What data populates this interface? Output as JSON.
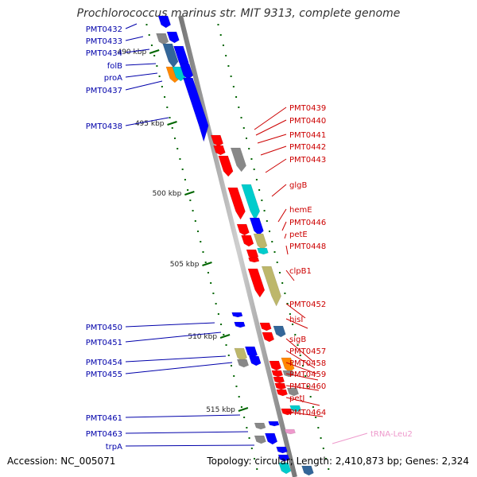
{
  "title": "Prochlorococcus marinus str. MIT 9313, complete genome",
  "footer": {
    "accession": "Accession: NC_005071",
    "topology": "Topology: circular; Length: 2,410,873 bp; Genes: 2,324"
  },
  "colors": {
    "backbone": "#999999",
    "forward_label": "#cc0000",
    "reverse_label": "#0000aa",
    "rna_label": "#ee99cc",
    "tick": "#006600",
    "red": "#ff0000",
    "blue": "#0000ff",
    "cyan": "#00cccc",
    "olive": "#bdb76b",
    "gray": "#888888",
    "orange": "#ff8800",
    "steel": "#336699"
  },
  "scale_labels": [
    "490 kbp",
    "495 kbp",
    "500 kbp",
    "505 kbp",
    "510 kbp",
    "515 kbp"
  ],
  "reverse_genes": [
    "PMT0432",
    "PMT0433",
    "PMT0434",
    "folB",
    "proA",
    "PMT0437",
    "PMT0438",
    "PMT0450",
    "PMT0451",
    "PMT0454",
    "PMT0455",
    "PMT0461",
    "PMT0463",
    "trpA"
  ],
  "forward_genes": [
    "PMT0439",
    "PMT0440",
    "PMT0441",
    "PMT0442",
    "PMT0443",
    "glgB",
    "hemE",
    "PMT0446",
    "petE",
    "PMT0448",
    "clpB1",
    "PMT0452",
    "hisI",
    "sigB",
    "PMT0457",
    "PMT0458",
    "PMT0459",
    "PMT0460",
    "petJ",
    "PMT0464"
  ],
  "rna_genes": [
    "tRNA-Leu2"
  ]
}
